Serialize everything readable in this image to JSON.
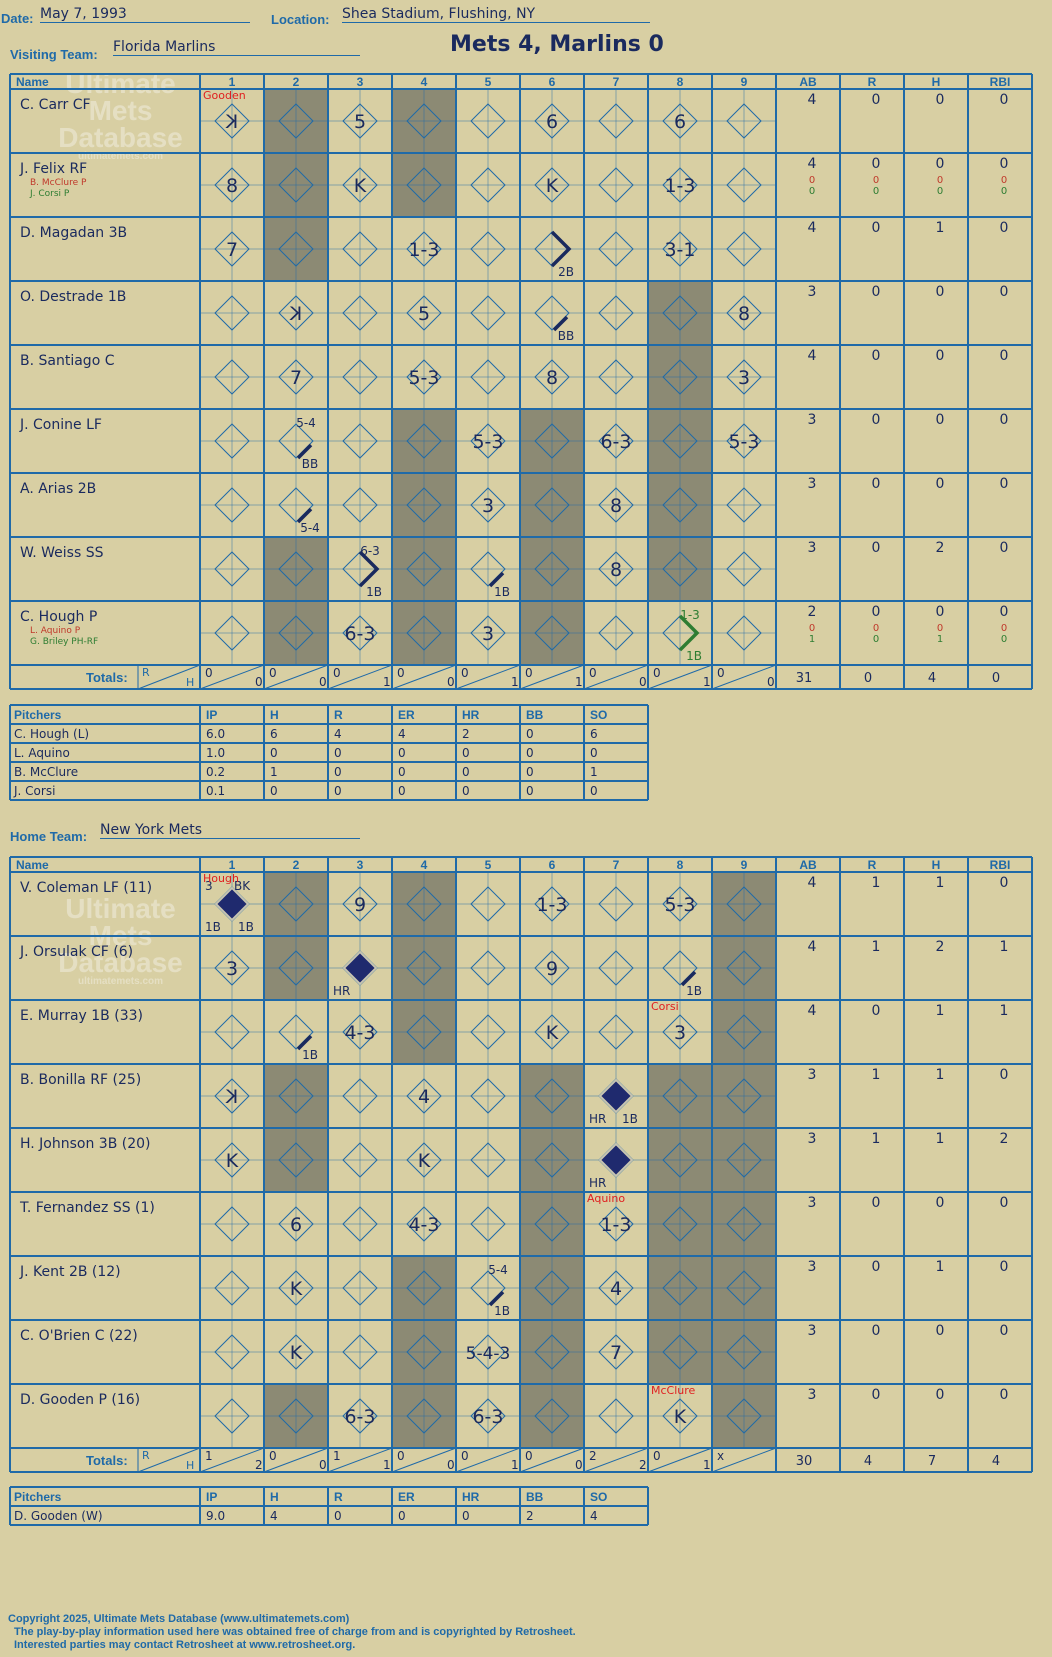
{
  "header": {
    "date_label": "Date:",
    "date": "May 7, 1993",
    "location_label": "Location:",
    "location": "Shea Stadium, Flushing, NY",
    "visiting_label": "Visiting Team:",
    "visiting_team": "Florida Marlins",
    "home_label": "Home Team:",
    "home_team": "New York Mets",
    "title": "Mets 4, Marlins 0"
  },
  "watermark": {
    "line1": "Ultimate",
    "line2": "Mets",
    "line3": "Database",
    "url": "ultimatemets.com"
  },
  "columns": {
    "name": "Name",
    "innings": [
      "1",
      "2",
      "3",
      "4",
      "5",
      "6",
      "7",
      "8",
      "9"
    ],
    "stats": [
      "AB",
      "R",
      "H",
      "RBI"
    ],
    "totals_label": "Totals:",
    "r": "R",
    "h": "H"
  },
  "visiting_batters": [
    {
      "name": "C. Carr CF",
      "subs": [],
      "ab": "4",
      "r": "0",
      "h": "0",
      "rbi": "0",
      "sub_stats": []
    },
    {
      "name": "J. Felix RF",
      "subs": [
        {
          "text": "B. McClure P",
          "color": "#c0392b"
        },
        {
          "text": "J. Corsi P",
          "color": "#2e7d32"
        }
      ],
      "ab": "4",
      "r": "0",
      "h": "0",
      "rbi": "0",
      "sub_stats": [
        {
          "ab": "0",
          "r": "0",
          "h": "0",
          "rbi": "0",
          "color": "#c0392b"
        },
        {
          "ab": "0",
          "r": "0",
          "h": "0",
          "rbi": "0",
          "color": "#2e7d32"
        }
      ]
    },
    {
      "name": "D. Magadan 3B",
      "subs": [],
      "ab": "4",
      "r": "0",
      "h": "1",
      "rbi": "0",
      "sub_stats": []
    },
    {
      "name": "O. Destrade 1B",
      "subs": [],
      "ab": "3",
      "r": "0",
      "h": "0",
      "rbi": "0",
      "sub_stats": []
    },
    {
      "name": "B. Santiago C",
      "subs": [],
      "ab": "4",
      "r": "0",
      "h": "0",
      "rbi": "0",
      "sub_stats": []
    },
    {
      "name": "J. Conine LF",
      "subs": [],
      "ab": "3",
      "r": "0",
      "h": "0",
      "rbi": "0",
      "sub_stats": []
    },
    {
      "name": "A. Arias 2B",
      "subs": [],
      "ab": "3",
      "r": "0",
      "h": "0",
      "rbi": "0",
      "sub_stats": []
    },
    {
      "name": "W. Weiss SS",
      "subs": [],
      "ab": "3",
      "r": "0",
      "h": "2",
      "rbi": "0",
      "sub_stats": []
    },
    {
      "name": "C. Hough P",
      "subs": [
        {
          "text": "L. Aquino P",
          "color": "#c0392b"
        },
        {
          "text": "G. Briley PH-RF",
          "color": "#2e7d32"
        }
      ],
      "ab": "2",
      "r": "0",
      "h": "0",
      "rbi": "0",
      "sub_stats": [
        {
          "ab": "0",
          "r": "0",
          "h": "0",
          "rbi": "0",
          "color": "#c0392b"
        },
        {
          "ab": "1",
          "r": "0",
          "h": "1",
          "rbi": "0",
          "color": "#2e7d32"
        }
      ]
    }
  ],
  "visiting_cells": [
    [
      {
        "t": "K",
        "f": true
      },
      null,
      {
        "t": "5"
      },
      null,
      null,
      {
        "t": "6"
      },
      null,
      {
        "t": "6"
      },
      null
    ],
    [
      {
        "t": "8"
      },
      null,
      {
        "t": "K"
      },
      null,
      null,
      {
        "t": "K"
      },
      null,
      {
        "t": "1-3"
      },
      null
    ],
    [
      {
        "t": "7"
      },
      null,
      null,
      {
        "t": "1-3"
      },
      null,
      {
        "hit": "2B",
        "label": "2B"
      },
      null,
      {
        "t": "3-1"
      },
      null
    ],
    [
      null,
      {
        "t": "K",
        "f": true
      },
      null,
      {
        "t": "5"
      },
      null,
      {
        "hit": "1B",
        "label": "BB"
      },
      null,
      null,
      {
        "t": "8"
      }
    ],
    [
      null,
      {
        "t": "7"
      },
      null,
      {
        "t": "5-3"
      },
      null,
      {
        "t": "8"
      },
      null,
      null,
      {
        "t": "3"
      }
    ],
    [
      null,
      {
        "hit": "1B",
        "label": "BB",
        "out": "5-4"
      },
      null,
      null,
      {
        "t": "5-3"
      },
      null,
      {
        "t": "6-3"
      },
      null,
      {
        "t": "5-3"
      }
    ],
    [
      null,
      {
        "hit": "1B",
        "label": "5-4"
      },
      null,
      null,
      {
        "t": "3"
      },
      null,
      {
        "t": "8"
      },
      null,
      null
    ],
    [
      null,
      null,
      {
        "hit": "2B",
        "label": "1B",
        "out": "6-3"
      },
      null,
      {
        "hit": "1B",
        "label": "1B"
      },
      null,
      {
        "t": "8"
      },
      null,
      null
    ],
    [
      null,
      null,
      {
        "t": "6-3"
      },
      null,
      {
        "t": "3"
      },
      null,
      null,
      {
        "hit": "2B",
        "label": "1B",
        "out": "1-3",
        "green": true
      },
      null
    ]
  ],
  "visiting_pitcher_notes": [
    {
      "row": 0,
      "col": 0,
      "text": "Gooden"
    }
  ],
  "visiting_shade": [
    0,
    1,
    0,
    1,
    0,
    1,
    0,
    1,
    0
  ],
  "visiting_innings_totals": [
    {
      "r": "0",
      "h": "0"
    },
    {
      "r": "0",
      "h": "0"
    },
    {
      "r": "0",
      "h": "1"
    },
    {
      "r": "0",
      "h": "0"
    },
    {
      "r": "0",
      "h": "1"
    },
    {
      "r": "0",
      "h": "1"
    },
    {
      "r": "0",
      "h": "0"
    },
    {
      "r": "0",
      "h": "1"
    },
    {
      "r": "0",
      "h": "0"
    }
  ],
  "visiting_totals": {
    "ab": "31",
    "r": "0",
    "h": "4",
    "rbi": "0"
  },
  "pitching_headers": [
    "Pitchers",
    "IP",
    "H",
    "R",
    "ER",
    "HR",
    "BB",
    "SO"
  ],
  "visiting_pitchers": [
    [
      "C. Hough (L)",
      "6.0",
      "6",
      "4",
      "4",
      "2",
      "0",
      "6"
    ],
    [
      "L. Aquino",
      "1.0",
      "0",
      "0",
      "0",
      "0",
      "0",
      "0"
    ],
    [
      "B. McClure",
      "0.2",
      "1",
      "0",
      "0",
      "0",
      "0",
      "1"
    ],
    [
      "J. Corsi",
      "0.1",
      "0",
      "0",
      "0",
      "0",
      "0",
      "0"
    ]
  ],
  "home_batters": [
    {
      "name": "V. Coleman LF (11)",
      "ab": "4",
      "r": "1",
      "h": "1",
      "rbi": "0"
    },
    {
      "name": "J. Orsulak CF (6)",
      "ab": "4",
      "r": "1",
      "h": "2",
      "rbi": "1"
    },
    {
      "name": "E. Murray 1B (33)",
      "ab": "4",
      "r": "0",
      "h": "1",
      "rbi": "1"
    },
    {
      "name": "B. Bonilla RF (25)",
      "ab": "3",
      "r": "1",
      "h": "1",
      "rbi": "0"
    },
    {
      "name": "H. Johnson 3B (20)",
      "ab": "3",
      "r": "1",
      "h": "1",
      "rbi": "2"
    },
    {
      "name": "T. Fernandez SS (1)",
      "ab": "3",
      "r": "0",
      "h": "0",
      "rbi": "0"
    },
    {
      "name": "J. Kent 2B (12)",
      "ab": "3",
      "r": "0",
      "h": "1",
      "rbi": "0"
    },
    {
      "name": "C. O'Brien C (22)",
      "ab": "3",
      "r": "0",
      "h": "0",
      "rbi": "0"
    },
    {
      "name": "D. Gooden P (16)",
      "ab": "3",
      "r": "0",
      "h": "0",
      "rbi": "0"
    }
  ],
  "home_cells": [
    [
      {
        "run": true,
        "corner": [
          "3",
          "BK",
          "1B",
          "1B"
        ]
      },
      null,
      {
        "t": "9"
      },
      null,
      null,
      {
        "t": "1-3"
      },
      null,
      {
        "t": "5-3"
      },
      null
    ],
    [
      {
        "t": "3"
      },
      null,
      {
        "run": true,
        "corner": [
          "",
          "",
          "HR",
          ""
        ]
      },
      null,
      null,
      {
        "t": "9"
      },
      null,
      {
        "hit": "1B",
        "label": "1B"
      },
      null
    ],
    [
      null,
      {
        "hit": "1B",
        "label": "1B"
      },
      {
        "t": "4-3"
      },
      null,
      null,
      {
        "t": "K"
      },
      null,
      {
        "t": "3"
      },
      null
    ],
    [
      {
        "t": "K",
        "f": true
      },
      null,
      null,
      {
        "t": "4"
      },
      null,
      null,
      {
        "run": true,
        "corner": [
          "",
          "",
          "HR",
          "1B"
        ]
      },
      null,
      null
    ],
    [
      {
        "t": "K"
      },
      null,
      null,
      {
        "t": "K"
      },
      null,
      null,
      {
        "run": true,
        "corner": [
          "",
          "",
          "HR",
          ""
        ]
      },
      null,
      null
    ],
    [
      null,
      {
        "t": "6"
      },
      null,
      {
        "t": "4-3"
      },
      null,
      null,
      {
        "t": "1-3"
      },
      null,
      null
    ],
    [
      null,
      {
        "t": "K"
      },
      null,
      null,
      {
        "hit": "1B",
        "label": "1B",
        "out": "5-4"
      },
      null,
      {
        "t": "4"
      },
      null,
      null
    ],
    [
      null,
      {
        "t": "K"
      },
      null,
      null,
      {
        "t": "5-4-3"
      },
      null,
      {
        "t": "7"
      },
      null,
      null
    ],
    [
      null,
      null,
      {
        "t": "6-3"
      },
      null,
      {
        "t": "6-3"
      },
      null,
      null,
      {
        "t": "K"
      },
      null
    ]
  ],
  "home_pitcher_notes": [
    {
      "row": 0,
      "col": 0,
      "text": "Hough"
    },
    {
      "row": 2,
      "col": 7,
      "text": "Corsi",
      "top": true
    },
    {
      "row": 5,
      "col": 6,
      "text": "Aquino",
      "top": true
    },
    {
      "row": 8,
      "col": 7,
      "text": "McClure"
    }
  ],
  "home_shade": [
    0,
    1,
    0,
    1,
    0,
    1,
    0,
    1,
    1
  ],
  "home_innings_totals": [
    {
      "r": "1",
      "h": "2"
    },
    {
      "r": "0",
      "h": "0"
    },
    {
      "r": "1",
      "h": "1"
    },
    {
      "r": "0",
      "h": "0"
    },
    {
      "r": "0",
      "h": "1"
    },
    {
      "r": "0",
      "h": "0"
    },
    {
      "r": "2",
      "h": "2"
    },
    {
      "r": "0",
      "h": "1"
    },
    {
      "r": "x",
      "h": ""
    }
  ],
  "home_totals": {
    "ab": "30",
    "r": "4",
    "h": "7",
    "rbi": "4"
  },
  "home_pitchers": [
    [
      "D. Gooden (W)",
      "9.0",
      "4",
      "0",
      "0",
      "0",
      "2",
      "4"
    ]
  ],
  "footer": {
    "line1": "Copyright 2025, Ultimate Mets Database (www.ultimatemets.com)",
    "line2": "The play-by-play information used here was obtained free of charge from and is copyrighted by Retrosheet.",
    "line3": "Interested parties may contact Retrosheet at www.retrosheet.org."
  },
  "colors": {
    "blue": "#1f6aa8",
    "ink": "#1a2a5e",
    "shade": "#8c8a74",
    "paper": "#d8cfa3",
    "red": "#e02020",
    "green": "#2e7d32"
  }
}
